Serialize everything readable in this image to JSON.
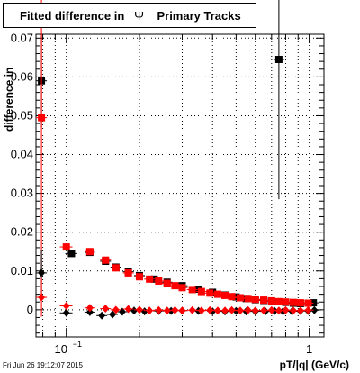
{
  "title": {
    "prefix": "Fitted difference in",
    "symbol": "Ψ",
    "suffix": "Primary Tracks"
  },
  "footer": {
    "timestamp": "Fri Jun 26 19:12:07 2015"
  },
  "chart_data": {
    "type": "scatter",
    "title": "Fitted difference in Ψ Primary Tracks",
    "xlabel": "pT/|q| (GeV/c)",
    "ylabel": "difference in",
    "xscale": "log",
    "xlim": [
      0.075,
      1.15
    ],
    "ylim": [
      -0.007,
      0.071
    ],
    "grid": true,
    "x_ticks": [
      {
        "value": 0.1,
        "label": "10",
        "exp": "−1"
      },
      {
        "value": 1,
        "label": "1",
        "exp": ""
      }
    ],
    "y_ticks": [
      {
        "value": 0,
        "label": "0"
      },
      {
        "value": 0.01,
        "label": "0.01"
      },
      {
        "value": 0.02,
        "label": "0.02"
      },
      {
        "value": 0.03,
        "label": "0.03"
      },
      {
        "value": 0.04,
        "label": "0.04"
      },
      {
        "value": 0.05,
        "label": "0.05"
      },
      {
        "value": 0.06,
        "label": "0.06"
      },
      {
        "value": 0.07,
        "label": "0.07"
      }
    ],
    "series": [
      {
        "marker": "square",
        "color": "#000000",
        "points": [
          {
            "x": 0.079,
            "y": 0.059,
            "yerr": 0.012
          },
          {
            "x": 0.105,
            "y": 0.0145,
            "xerr": 0.006
          },
          {
            "x": 0.125,
            "y": 0.0148,
            "xerr": 0.006
          },
          {
            "x": 0.145,
            "y": 0.0125
          },
          {
            "x": 0.16,
            "y": 0.011
          },
          {
            "x": 0.18,
            "y": 0.0098
          },
          {
            "x": 0.2,
            "y": 0.0088
          },
          {
            "x": 0.23,
            "y": 0.0079
          },
          {
            "x": 0.26,
            "y": 0.0071
          },
          {
            "x": 0.3,
            "y": 0.0062
          },
          {
            "x": 0.35,
            "y": 0.0053
          },
          {
            "x": 0.4,
            "y": 0.0045
          },
          {
            "x": 0.45,
            "y": 0.0038
          },
          {
            "x": 0.5,
            "y": 0.0033
          },
          {
            "x": 0.55,
            "y": 0.0029
          },
          {
            "x": 0.6,
            "y": 0.0026
          },
          {
            "x": 0.65,
            "y": 0.0024
          },
          {
            "x": 0.7,
            "y": 0.0022
          },
          {
            "x": 0.75,
            "y": 0.0645,
            "yerr": 0.036
          },
          {
            "x": 0.8,
            "y": 0.0019
          },
          {
            "x": 0.86,
            "y": 0.0017
          },
          {
            "x": 0.92,
            "y": 0.0016
          },
          {
            "x": 0.99,
            "y": 0.0017
          },
          {
            "x": 1.04,
            "y": 0.0018
          }
        ]
      },
      {
        "marker": "square",
        "color": "#ff0000",
        "points": [
          {
            "x": 0.079,
            "y": 0.0495,
            "yerr": 0.04
          },
          {
            "x": 0.1,
            "y": 0.0162,
            "xerr": 0.006
          },
          {
            "x": 0.125,
            "y": 0.015,
            "xerr": 0.006
          },
          {
            "x": 0.145,
            "y": 0.0128
          },
          {
            "x": 0.16,
            "y": 0.0108
          },
          {
            "x": 0.18,
            "y": 0.0095
          },
          {
            "x": 0.2,
            "y": 0.0085
          },
          {
            "x": 0.22,
            "y": 0.0079
          },
          {
            "x": 0.24,
            "y": 0.0074
          },
          {
            "x": 0.26,
            "y": 0.0068
          },
          {
            "x": 0.28,
            "y": 0.0062
          },
          {
            "x": 0.3,
            "y": 0.0057
          },
          {
            "x": 0.33,
            "y": 0.0052
          },
          {
            "x": 0.36,
            "y": 0.0047
          },
          {
            "x": 0.39,
            "y": 0.0043
          },
          {
            "x": 0.42,
            "y": 0.004
          },
          {
            "x": 0.45,
            "y": 0.0037
          },
          {
            "x": 0.48,
            "y": 0.0034
          },
          {
            "x": 0.52,
            "y": 0.0031
          },
          {
            "x": 0.56,
            "y": 0.0029
          },
          {
            "x": 0.6,
            "y": 0.0027
          },
          {
            "x": 0.65,
            "y": 0.0025
          },
          {
            "x": 0.7,
            "y": 0.0023
          },
          {
            "x": 0.75,
            "y": 0.0021
          },
          {
            "x": 0.8,
            "y": 0.002
          },
          {
            "x": 0.86,
            "y": 0.0019
          },
          {
            "x": 0.92,
            "y": 0.0018
          },
          {
            "x": 0.99,
            "y": 0.0017
          }
        ]
      },
      {
        "marker": "diamond",
        "color": "#000000",
        "points": [
          {
            "x": 0.079,
            "y": 0.0095,
            "yerr": 0.006
          },
          {
            "x": 0.1,
            "y": -0.0008,
            "xerr": 0.006
          },
          {
            "x": 0.125,
            "y": -0.0006
          },
          {
            "x": 0.14,
            "y": -0.0015
          },
          {
            "x": 0.155,
            "y": -0.0012
          },
          {
            "x": 0.17,
            "y": -0.0005
          },
          {
            "x": 0.19,
            "y": -0.0002
          },
          {
            "x": 0.21,
            "y": -0.0004
          },
          {
            "x": 0.24,
            "y": -0.0003
          },
          {
            "x": 0.27,
            "y": -0.0003
          },
          {
            "x": 0.3,
            "y": -0.0002
          },
          {
            "x": 0.35,
            "y": -0.0003
          },
          {
            "x": 0.4,
            "y": -0.0004
          },
          {
            "x": 0.45,
            "y": -0.0004
          },
          {
            "x": 0.5,
            "y": -0.0003
          },
          {
            "x": 0.55,
            "y": -0.0004
          },
          {
            "x": 0.6,
            "y": -0.0004
          },
          {
            "x": 0.66,
            "y": -0.0004
          },
          {
            "x": 0.72,
            "y": -0.0003
          },
          {
            "x": 0.78,
            "y": -0.0004
          },
          {
            "x": 0.85,
            "y": -0.0004
          },
          {
            "x": 0.92,
            "y": -0.0003
          },
          {
            "x": 0.99,
            "y": -0.0003
          },
          {
            "x": 1.05,
            "y": -0.0001
          }
        ]
      },
      {
        "marker": "diamond",
        "color": "#ff0000",
        "points": [
          {
            "x": 0.079,
            "y": 0.0032,
            "yerr": 0.005
          },
          {
            "x": 0.1,
            "y": 0.001,
            "xerr": 0.006
          },
          {
            "x": 0.125,
            "y": 0.0005
          },
          {
            "x": 0.145,
            "y": 0.0003
          },
          {
            "x": 0.16,
            "y": 0.0
          },
          {
            "x": 0.18,
            "y": 0.0002
          },
          {
            "x": 0.2,
            "y": 0.0
          },
          {
            "x": 0.22,
            "y": -0.0002
          },
          {
            "x": 0.24,
            "y": -0.0001
          },
          {
            "x": 0.26,
            "y": -0.0002
          },
          {
            "x": 0.28,
            "y": -0.0001
          },
          {
            "x": 0.3,
            "y": -0.0002
          },
          {
            "x": 0.33,
            "y": -0.0001
          },
          {
            "x": 0.36,
            "y": -0.0002
          },
          {
            "x": 0.39,
            "y": -0.0001
          },
          {
            "x": 0.42,
            "y": -0.0002
          },
          {
            "x": 0.45,
            "y": -0.0002
          },
          {
            "x": 0.48,
            "y": -0.0001
          },
          {
            "x": 0.52,
            "y": -0.0002
          },
          {
            "x": 0.56,
            "y": -0.0001
          },
          {
            "x": 0.6,
            "y": -0.0002
          },
          {
            "x": 0.65,
            "y": -0.0002
          },
          {
            "x": 0.7,
            "y": -0.0001
          },
          {
            "x": 0.75,
            "y": -0.0002
          },
          {
            "x": 0.8,
            "y": -0.0001
          },
          {
            "x": 0.86,
            "y": -0.0002
          },
          {
            "x": 0.92,
            "y": -0.0002
          },
          {
            "x": 0.99,
            "y": -0.0001
          }
        ]
      }
    ]
  }
}
